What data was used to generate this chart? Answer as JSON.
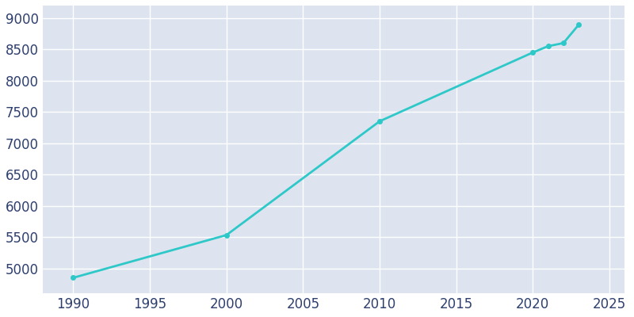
{
  "years": [
    1990,
    2000,
    2010,
    2020,
    2021,
    2022,
    2023
  ],
  "population": [
    4850,
    5532,
    7350,
    8449,
    8550,
    8600,
    8893
  ],
  "line_color": "#2ec8c8",
  "marker_color": "#2ec8c8",
  "bg_color": "#ffffff",
  "plot_bg_color": "#dde4f0",
  "xlim": [
    1988,
    2026
  ],
  "ylim": [
    4600,
    9200
  ],
  "xticks": [
    1990,
    1995,
    2000,
    2005,
    2010,
    2015,
    2020,
    2025
  ],
  "yticks": [
    5000,
    5500,
    6000,
    6500,
    7000,
    7500,
    8000,
    8500,
    9000
  ],
  "tick_label_color": "#2e3f6e",
  "grid_color": "#ffffff",
  "line_width": 2.0,
  "marker_size": 4,
  "tick_fontsize": 12
}
